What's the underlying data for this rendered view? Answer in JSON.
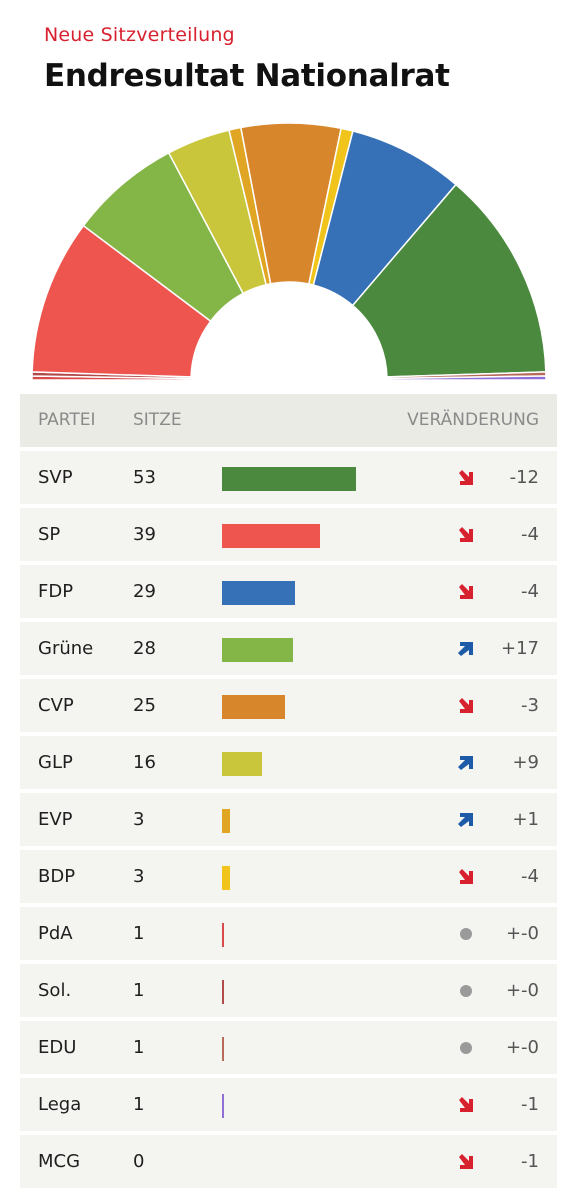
{
  "header": {
    "kicker": "Neue Sitzverteilung",
    "title": "Endresultat Nationalrat"
  },
  "table": {
    "col_party": "PARTEI",
    "col_seats": "SITZE",
    "col_change": "VERÄNDERUNG",
    "rows": [
      {
        "party": "SVP",
        "seats": "53",
        "change": "-12",
        "trend": "down",
        "color": "#4b8a3e"
      },
      {
        "party": "SP",
        "seats": "39",
        "change": "-4",
        "trend": "down",
        "color": "#ee554f"
      },
      {
        "party": "FDP",
        "seats": "29",
        "change": "-4",
        "trend": "down",
        "color": "#3670b6"
      },
      {
        "party": "Grüne",
        "seats": "28",
        "change": "+17",
        "trend": "up",
        "color": "#84b547"
      },
      {
        "party": "CVP",
        "seats": "25",
        "change": "-3",
        "trend": "down",
        "color": "#d8862c"
      },
      {
        "party": "GLP",
        "seats": "16",
        "change": "+9",
        "trend": "up",
        "color": "#c9c63c"
      },
      {
        "party": "EVP",
        "seats": "3",
        "change": "+1",
        "trend": "up",
        "color": "#e1a524"
      },
      {
        "party": "BDP",
        "seats": "3",
        "change": "-4",
        "trend": "down",
        "color": "#f1c41c"
      },
      {
        "party": "PdA",
        "seats": "1",
        "change": "+-0",
        "trend": "same",
        "color": "#d94a4a"
      },
      {
        "party": "Sol.",
        "seats": "1",
        "change": "+-0",
        "trend": "same",
        "color": "#b14a4a"
      },
      {
        "party": "EDU",
        "seats": "1",
        "change": "+-0",
        "trend": "same",
        "color": "#b76a5a"
      },
      {
        "party": "Lega",
        "seats": "1",
        "change": "-1",
        "trend": "down",
        "color": "#8f6fd6"
      },
      {
        "party": "MCG",
        "seats": "0",
        "change": "-1",
        "trend": "down",
        "color": "#9aa4b5"
      }
    ]
  },
  "chart_data": {
    "type": "bar",
    "categories": [
      "SVP",
      "SP",
      "FDP",
      "Grüne",
      "CVP",
      "GLP",
      "EVP",
      "BDP",
      "PdA",
      "Sol.",
      "EDU",
      "Lega",
      "MCG"
    ],
    "series": [
      {
        "values": [
          53,
          39,
          29,
          28,
          25,
          16,
          3,
          3,
          1,
          1,
          1,
          1,
          0
        ]
      },
      {
        "values": [
          -12,
          -4,
          -4,
          17,
          -3,
          9,
          1,
          -4,
          0,
          0,
          0,
          -1,
          -1
        ]
      }
    ],
    "hemicycle_order": [
      "PdA",
      "Sol.",
      "SP",
      "Grüne",
      "GLP",
      "EVP",
      "CVP",
      "BDP",
      "FDP",
      "SVP",
      "EDU",
      "Lega"
    ],
    "total_seats": 200,
    "colors": {
      "trend_down": "#d8212f",
      "trend_up": "#1d5ba8",
      "trend_same": "#9a9a9a",
      "row_bg": "#f4f4f1",
      "header_bg": "#ebebe6"
    }
  }
}
